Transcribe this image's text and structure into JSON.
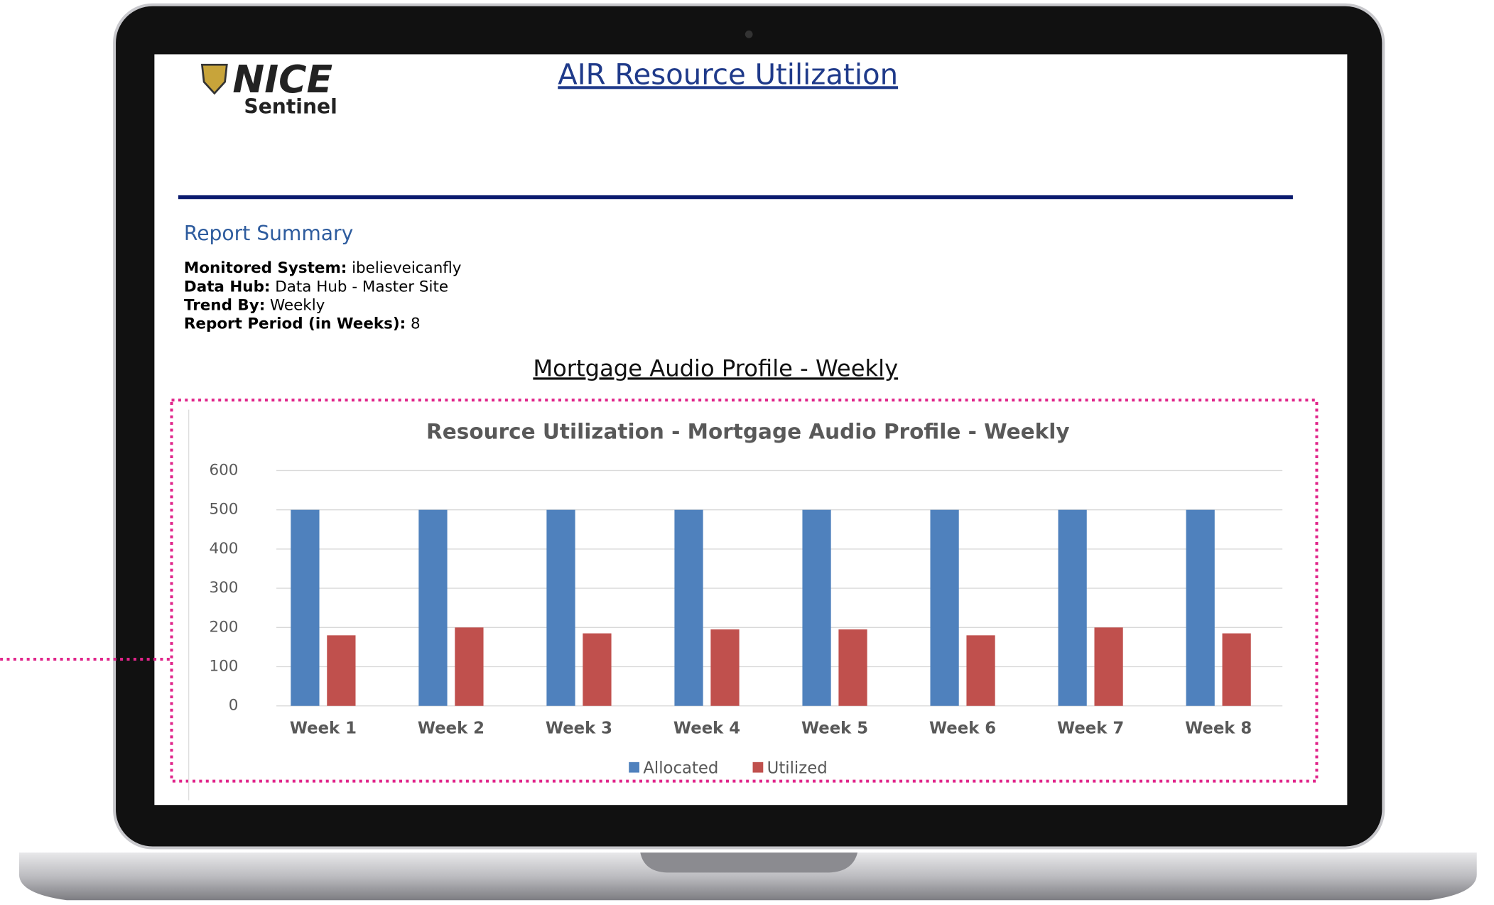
{
  "logo": {
    "brand": "NICE",
    "product": "Sentinel"
  },
  "header": {
    "title": "AIR Resource Utilization"
  },
  "summary": {
    "heading": "Report Summary",
    "items": [
      {
        "label": "Monitored System:",
        "value": "ibelieveicanfly"
      },
      {
        "label": "Data Hub:",
        "value": "Data Hub - Master Site"
      },
      {
        "label": "Trend By:",
        "value": "Weekly"
      },
      {
        "label": "Report Period (in Weeks):",
        "value": "8"
      }
    ]
  },
  "section_title": "Mortgage Audio Profile - Weekly",
  "chart_data": {
    "type": "bar",
    "title": "Resource Utilization - Mortgage Audio Profile - Weekly",
    "categories": [
      "Week 1",
      "Week 2",
      "Week 3",
      "Week 4",
      "Week 5",
      "Week 6",
      "Week 7",
      "Week 8"
    ],
    "series": [
      {
        "name": "Allocated",
        "color": "#4f81bd",
        "values": [
          500,
          500,
          500,
          500,
          500,
          500,
          500,
          500
        ]
      },
      {
        "name": "Utilized",
        "color": "#c0504d",
        "values": [
          180,
          200,
          185,
          195,
          195,
          180,
          200,
          185
        ]
      }
    ],
    "ylim": [
      0,
      600
    ],
    "yticks": [
      0,
      100,
      200,
      300,
      400,
      500,
      600
    ],
    "grid": true,
    "legend": "bottom"
  }
}
